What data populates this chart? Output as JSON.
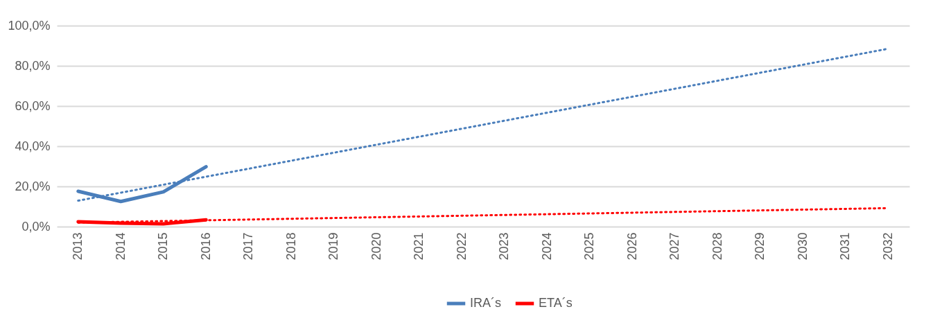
{
  "chart_data": {
    "type": "line",
    "series": [
      {
        "name": "IRA´s",
        "color": "#4a7ebb",
        "x": [
          2013,
          2014,
          2015,
          2016
        ],
        "values": [
          17.6,
          12.5,
          17.3,
          29.8
        ]
      },
      {
        "name": "ETA´s",
        "color": "#ff0000",
        "x": [
          2013,
          2014,
          2015,
          2016
        ],
        "values": [
          2.4,
          1.7,
          1.4,
          3.4
        ]
      },
      {
        "type": "line",
        "color": "#4a7ebb",
        "line_style": "dotted",
        "x": [
          2013,
          2032
        ],
        "values": [
          12.9,
          88.5
        ]
      },
      {
        "type": "line",
        "color": "#ff0000",
        "line_style": "dotted",
        "x": [
          2013,
          2032
        ],
        "values": [
          2.0,
          9.2
        ]
      }
    ],
    "xlim": [
      2012.5,
      2032.5
    ],
    "xticks": [
      2013,
      2014,
      2015,
      2016,
      2017,
      2018,
      2019,
      2020,
      2021,
      2022,
      2023,
      2024,
      2025,
      2026,
      2027,
      2028,
      2029,
      2030,
      2031,
      2032
    ],
    "ylim": [
      0,
      100
    ],
    "yticks": [
      {
        "value": 0,
        "label": "0,0%"
      },
      {
        "value": 20,
        "label": "20,0%"
      },
      {
        "value": 40,
        "label": "40,0%"
      },
      {
        "value": 60,
        "label": "60,0%"
      },
      {
        "value": 80,
        "label": "80,0%"
      },
      {
        "value": 100,
        "label": "100,0%"
      }
    ],
    "grid": "y",
    "legend": "bottom",
    "line_style": "solid",
    "marker": "none"
  }
}
